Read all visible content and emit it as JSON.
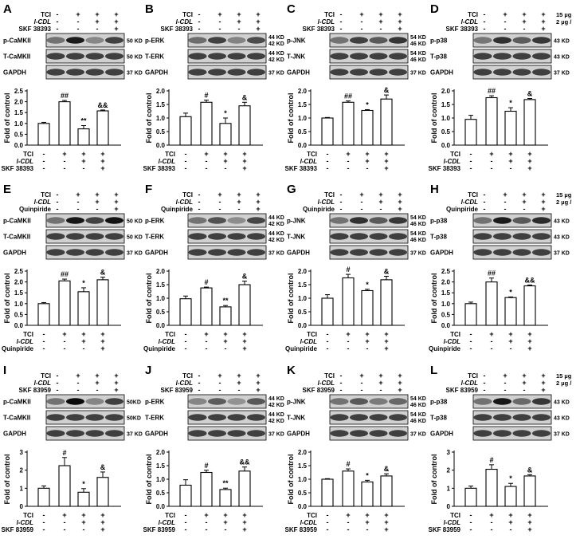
{
  "figure": {
    "treatment_labels": [
      "TCI",
      "l-CDL"
    ],
    "dose_notes": {
      "row1": [
        "15 µg / 20 µL",
        "2 µg / 20 µL"
      ],
      "row2": [
        "15 µg / 20 µL",
        "2 µg / 20 µL"
      ],
      "row3": [
        "15 µg / 20µL",
        "2 µg / 20µL"
      ]
    },
    "panels": [
      {
        "letter": "A",
        "agent": "SKF 38393",
        "blots": [
          {
            "label": "p-CaMKII",
            "kd": "50 KD"
          },
          {
            "label": "T-CaMKII",
            "kd": "50 KD"
          },
          {
            "label": "GAPDH",
            "kd": "37 KD"
          }
        ],
        "values": [
          1.0,
          2.0,
          0.75,
          1.58
        ],
        "errors": [
          0.05,
          0.06,
          0.15,
          0.04
        ],
        "sig": [
          "",
          "##",
          "**",
          "&&"
        ]
      },
      {
        "letter": "B",
        "agent": "SKF 38393",
        "blots": [
          {
            "label": "p-ERK",
            "kd": "44 KD\n42 KD"
          },
          {
            "label": "T-ERK",
            "kd": "44 KD\n42 KD"
          },
          {
            "label": "GAPDH",
            "kd": "37 KD"
          }
        ],
        "values": [
          1.05,
          1.58,
          0.8,
          1.45
        ],
        "errors": [
          0.13,
          0.08,
          0.2,
          0.13
        ],
        "sig": [
          "",
          "#",
          "*",
          "&"
        ]
      },
      {
        "letter": "C",
        "agent": "SKF 38393",
        "blots": [
          {
            "label": "p-JNK",
            "kd": "54 KD\n46 KD"
          },
          {
            "label": "T-JNK",
            "kd": "54 KD\n46 KD"
          },
          {
            "label": "GAPDH",
            "kd": "37 KD"
          }
        ],
        "values": [
          1.0,
          1.58,
          1.28,
          1.7
        ],
        "errors": [
          0.02,
          0.05,
          0.03,
          0.15
        ],
        "sig": [
          "",
          "##",
          "*",
          "&"
        ]
      },
      {
        "letter": "D",
        "agent": "SKF 38393",
        "blots": [
          {
            "label": "p-p38",
            "kd": "43 KD"
          },
          {
            "label": "T-p38",
            "kd": "43 KD"
          },
          {
            "label": "GAPDH",
            "kd": "37 KD"
          }
        ],
        "values": [
          0.95,
          1.75,
          1.25,
          1.68
        ],
        "errors": [
          0.15,
          0.07,
          0.13,
          0.04
        ],
        "sig": [
          "",
          "##",
          "*",
          "&"
        ]
      },
      {
        "letter": "E",
        "agent": "Quinpiride",
        "blots": [
          {
            "label": "p-CaMKII",
            "kd": "50 KD"
          },
          {
            "label": "T-CaMKII",
            "kd": "50 KD"
          },
          {
            "label": "GAPDH",
            "kd": "37 KD"
          }
        ],
        "values": [
          1.0,
          2.05,
          1.55,
          2.1
        ],
        "errors": [
          0.05,
          0.08,
          0.18,
          0.12
        ],
        "sig": [
          "",
          "##",
          "*",
          "&"
        ]
      },
      {
        "letter": "F",
        "agent": "Quinpiride",
        "blots": [
          {
            "label": "p-ERK",
            "kd": "44 KD\n42 KD"
          },
          {
            "label": "T-ERK",
            "kd": "44 KD\n42 KD"
          },
          {
            "label": "GAPDH",
            "kd": "37 KD"
          }
        ],
        "values": [
          0.98,
          1.38,
          0.68,
          1.5
        ],
        "errors": [
          0.1,
          0.03,
          0.05,
          0.13
        ],
        "sig": [
          "",
          "#",
          "**",
          "&"
        ]
      },
      {
        "letter": "G",
        "agent": "Quinpiride",
        "blots": [
          {
            "label": "p-JNK",
            "kd": "54 KD\n46 KD"
          },
          {
            "label": "T-JNK",
            "kd": "54 KD\n46 KD"
          },
          {
            "label": "GAPDH",
            "kd": "37 KD"
          }
        ],
        "values": [
          1.0,
          1.75,
          1.28,
          1.68
        ],
        "errors": [
          0.13,
          0.13,
          0.05,
          0.13
        ],
        "sig": [
          "",
          "#",
          "*",
          "&"
        ]
      },
      {
        "letter": "H",
        "agent": "Quinpiride",
        "blots": [
          {
            "label": "p-p38",
            "kd": "43 KD"
          },
          {
            "label": "T-p38",
            "kd": "43 KD"
          },
          {
            "label": "GAPDH",
            "kd": "37 KD"
          }
        ],
        "values": [
          1.0,
          2.0,
          1.28,
          1.82
        ],
        "errors": [
          0.07,
          0.18,
          0.03,
          0.04
        ],
        "sig": [
          "",
          "##",
          "*",
          "&&"
        ]
      },
      {
        "letter": "I",
        "agent": "SKF 83959",
        "blots": [
          {
            "label": "p-CaMKII",
            "kd": "50KD"
          },
          {
            "label": "T-CaMKII",
            "kd": "50KD"
          },
          {
            "label": "GAPDH",
            "kd": "37 KD"
          }
        ],
        "values": [
          1.0,
          2.25,
          0.78,
          1.6
        ],
        "errors": [
          0.13,
          0.45,
          0.2,
          0.3
        ],
        "sig": [
          "",
          "#",
          "*",
          "&"
        ]
      },
      {
        "letter": "J",
        "agent": "SKF 83959",
        "blots": [
          {
            "label": "p-ERK",
            "kd": "44 KD\n42 KD"
          },
          {
            "label": "T-ERK",
            "kd": "44 KD\n42 KD"
          },
          {
            "label": "GAPDH",
            "kd": "37 KD"
          }
        ],
        "values": [
          0.78,
          1.25,
          0.62,
          1.3
        ],
        "errors": [
          0.2,
          0.08,
          0.05,
          0.15
        ],
        "sig": [
          "",
          "#",
          "**",
          "&&"
        ]
      },
      {
        "letter": "K",
        "agent": "SKF 83959",
        "blots": [
          {
            "label": "p-JNK",
            "kd": "54 KD\n46 KD"
          },
          {
            "label": "T-JNK",
            "kd": "54 KD\n46 KD"
          },
          {
            "label": "GAPDH",
            "kd": "37 KD"
          }
        ],
        "values": [
          1.0,
          1.3,
          0.9,
          1.12
        ],
        "errors": [
          0.02,
          0.08,
          0.06,
          0.08
        ],
        "sig": [
          "",
          "#",
          "*",
          "&"
        ]
      },
      {
        "letter": "L",
        "agent": "SKF 83959",
        "blots": [
          {
            "label": "p-p38",
            "kd": "43 KD"
          },
          {
            "label": "T-p38",
            "kd": "43 KD"
          },
          {
            "label": "GAPDH",
            "kd": "37 KD"
          }
        ],
        "values": [
          1.0,
          2.05,
          1.1,
          1.68
        ],
        "errors": [
          0.12,
          0.25,
          0.17,
          0.07
        ],
        "sig": [
          "",
          "#",
          "*",
          "&"
        ]
      }
    ],
    "chart": {
      "ylabel": "Fold of control",
      "ticks": [
        "0.0",
        "0.5",
        "1.0",
        "1.5",
        "2.0"
      ],
      "ticks_tall": [
        "0.0",
        "0.5",
        "1.0",
        "1.5",
        "2.0",
        "2.5"
      ],
      "tall_panels": [
        "A",
        "E",
        "H"
      ],
      "taller_panels": [
        "I",
        "L"
      ],
      "ticks_taller": [
        "0",
        "1",
        "2",
        "3"
      ],
      "lane_signs": {
        "TCI": [
          "-",
          "+",
          "+",
          "+"
        ],
        "l-CDL": [
          "-",
          "-",
          "+",
          "+"
        ],
        "agent": [
          "-",
          "-",
          "-",
          "+"
        ]
      }
    }
  }
}
